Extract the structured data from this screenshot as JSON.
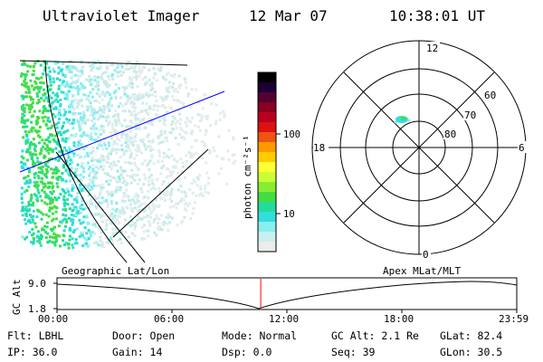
{
  "header": {
    "instrument": "Ultraviolet Imager",
    "date": "12 Mar 07",
    "time": "10:38:01 UT"
  },
  "colorbar": {
    "unit_label": "photon cm⁻²s⁻¹",
    "tick_labels": [
      "100",
      "10"
    ],
    "colors": [
      "#000000",
      "#1a0033",
      "#550033",
      "#880022",
      "#bb0022",
      "#dd1111",
      "#ee5511",
      "#ff9900",
      "#ffcc00",
      "#ffff33",
      "#ccff33",
      "#88ee33",
      "#44dd44",
      "#22dd99",
      "#33dddd",
      "#88eeee",
      "#c8f0f0",
      "#ececec"
    ]
  },
  "polar_plot": {
    "mlt_labels": {
      "top": "12",
      "left": "18",
      "right": "6",
      "bottom": "0"
    },
    "lat_labels": [
      "60",
      "70",
      "80"
    ]
  },
  "timeline": {
    "left_label": "Geographic Lat/Lon",
    "right_label": "Apex MLat/MLT",
    "axis_title": "GC Alt",
    "y_ticks": [
      "9.0",
      "1.8"
    ],
    "x_ticks": [
      "00:00",
      "06:00",
      "12:00",
      "18:00",
      "23:59"
    ],
    "current_time_fraction": 0.4431,
    "marker_color": "#ff0000"
  },
  "footer": {
    "flt": "Flt: LBHL",
    "ip": "IP: 36.0",
    "door": "Door: Open",
    "gain": "Gain: 14",
    "mode": "Mode: Normal",
    "dsp": "Dsp:     0.0",
    "gc_alt": "GC Alt: 2.1 Re",
    "seq": "Seq: 39",
    "glat": "GLat:  82.4",
    "glon": "GLon:  30.5"
  }
}
